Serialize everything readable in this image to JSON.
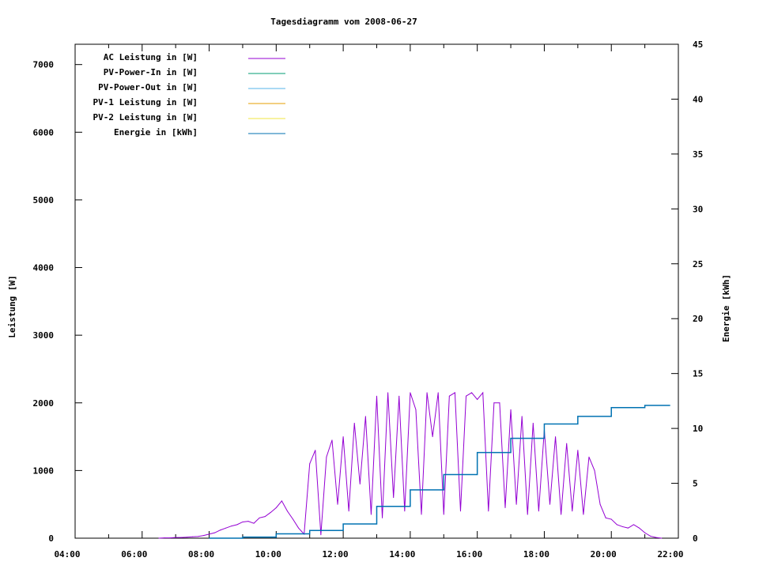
{
  "chart_data": {
    "type": "line",
    "title": "Tagesdiagramm vom 2008-06-27",
    "ylabel": "Leistung [W]",
    "y2label": "Energie [kWh]",
    "xlim": [
      "04:00",
      "22:00"
    ],
    "ylim": [
      0,
      7300
    ],
    "y2lim": [
      0,
      45
    ],
    "xticks": [
      "04:00",
      "06:00",
      "08:00",
      "10:00",
      "12:00",
      "14:00",
      "16:00",
      "18:00",
      "20:00",
      "22:00"
    ],
    "yticks": [
      0,
      1000,
      2000,
      3000,
      4000,
      5000,
      6000,
      7000
    ],
    "y2ticks": [
      0,
      5,
      10,
      15,
      20,
      25,
      30,
      35,
      40,
      45
    ],
    "grid": false,
    "legend_position": "top-left",
    "series": [
      {
        "name": "AC Leistung in [W]",
        "color": "#9400d3",
        "axis": "y",
        "points": [
          [
            "06:30",
            0
          ],
          [
            "06:40",
            5
          ],
          [
            "06:50",
            5
          ],
          [
            "07:00",
            10
          ],
          [
            "07:10",
            10
          ],
          [
            "07:20",
            15
          ],
          [
            "07:30",
            20
          ],
          [
            "07:40",
            25
          ],
          [
            "07:50",
            40
          ],
          [
            "08:00",
            60
          ],
          [
            "08:10",
            80
          ],
          [
            "08:20",
            120
          ],
          [
            "08:30",
            150
          ],
          [
            "08:40",
            180
          ],
          [
            "08:50",
            200
          ],
          [
            "09:00",
            240
          ],
          [
            "09:10",
            250
          ],
          [
            "09:20",
            220
          ],
          [
            "09:30",
            300
          ],
          [
            "09:40",
            320
          ],
          [
            "09:50",
            380
          ],
          [
            "10:00",
            450
          ],
          [
            "10:10",
            550
          ],
          [
            "10:20",
            400
          ],
          [
            "10:30",
            280
          ],
          [
            "10:40",
            150
          ],
          [
            "10:50",
            60
          ],
          [
            "11:00",
            1100
          ],
          [
            "11:10",
            1300
          ],
          [
            "11:20",
            50
          ],
          [
            "11:30",
            1200
          ],
          [
            "11:40",
            1450
          ],
          [
            "11:50",
            500
          ],
          [
            "12:00",
            1500
          ],
          [
            "12:10",
            400
          ],
          [
            "12:20",
            1700
          ],
          [
            "12:30",
            800
          ],
          [
            "12:40",
            1800
          ],
          [
            "12:50",
            350
          ],
          [
            "13:00",
            2100
          ],
          [
            "13:10",
            300
          ],
          [
            "13:20",
            2150
          ],
          [
            "13:30",
            600
          ],
          [
            "13:40",
            2100
          ],
          [
            "13:50",
            400
          ],
          [
            "14:00",
            2150
          ],
          [
            "14:10",
            1900
          ],
          [
            "14:20",
            350
          ],
          [
            "14:30",
            2150
          ],
          [
            "14:40",
            1500
          ],
          [
            "14:50",
            2150
          ],
          [
            "15:00",
            350
          ],
          [
            "15:10",
            2100
          ],
          [
            "15:20",
            2150
          ],
          [
            "15:30",
            400
          ],
          [
            "15:40",
            2100
          ],
          [
            "15:50",
            2150
          ],
          [
            "16:00",
            2050
          ],
          [
            "16:10",
            2150
          ],
          [
            "16:20",
            400
          ],
          [
            "16:30",
            2000
          ],
          [
            "16:40",
            2000
          ],
          [
            "16:50",
            450
          ],
          [
            "17:00",
            1900
          ],
          [
            "17:10",
            500
          ],
          [
            "17:20",
            1800
          ],
          [
            "17:30",
            350
          ],
          [
            "17:40",
            1700
          ],
          [
            "17:50",
            400
          ],
          [
            "18:00",
            1600
          ],
          [
            "18:10",
            500
          ],
          [
            "18:20",
            1500
          ],
          [
            "18:30",
            350
          ],
          [
            "18:40",
            1400
          ],
          [
            "18:50",
            400
          ],
          [
            "19:00",
            1300
          ],
          [
            "19:10",
            350
          ],
          [
            "19:20",
            1200
          ],
          [
            "19:30",
            1000
          ],
          [
            "19:40",
            500
          ],
          [
            "19:50",
            300
          ],
          [
            "20:00",
            280
          ],
          [
            "20:10",
            200
          ],
          [
            "20:20",
            170
          ],
          [
            "20:30",
            150
          ],
          [
            "20:40",
            200
          ],
          [
            "20:50",
            150
          ],
          [
            "21:00",
            80
          ],
          [
            "21:10",
            30
          ],
          [
            "21:20",
            10
          ],
          [
            "21:30",
            0
          ]
        ]
      },
      {
        "name": "PV-Power-In in [W]",
        "color": "#009e73",
        "axis": "y",
        "points": []
      },
      {
        "name": "PV-Power-Out in [W]",
        "color": "#56b4e9",
        "axis": "y",
        "points": []
      },
      {
        "name": "PV-1 Leistung in [W]",
        "color": "#e69f00",
        "axis": "y",
        "points": []
      },
      {
        "name": "PV-2 Leistung in [W]",
        "color": "#f0e442",
        "axis": "y",
        "points": []
      },
      {
        "name": "Energie in [kWh]",
        "color": "#0072b2",
        "axis": "y2",
        "points": [
          [
            "08:00",
            0
          ],
          [
            "09:00",
            0.1
          ],
          [
            "10:00",
            0.4
          ],
          [
            "11:00",
            0.7
          ],
          [
            "12:00",
            1.3
          ],
          [
            "13:00",
            2.9
          ],
          [
            "14:00",
            4.4
          ],
          [
            "15:00",
            5.8
          ],
          [
            "16:00",
            7.8
          ],
          [
            "17:00",
            9.1
          ],
          [
            "18:00",
            10.4
          ],
          [
            "19:00",
            11.1
          ],
          [
            "20:00",
            11.9
          ],
          [
            "21:00",
            12.1
          ],
          [
            "21:45",
            12.1
          ]
        ]
      }
    ]
  }
}
